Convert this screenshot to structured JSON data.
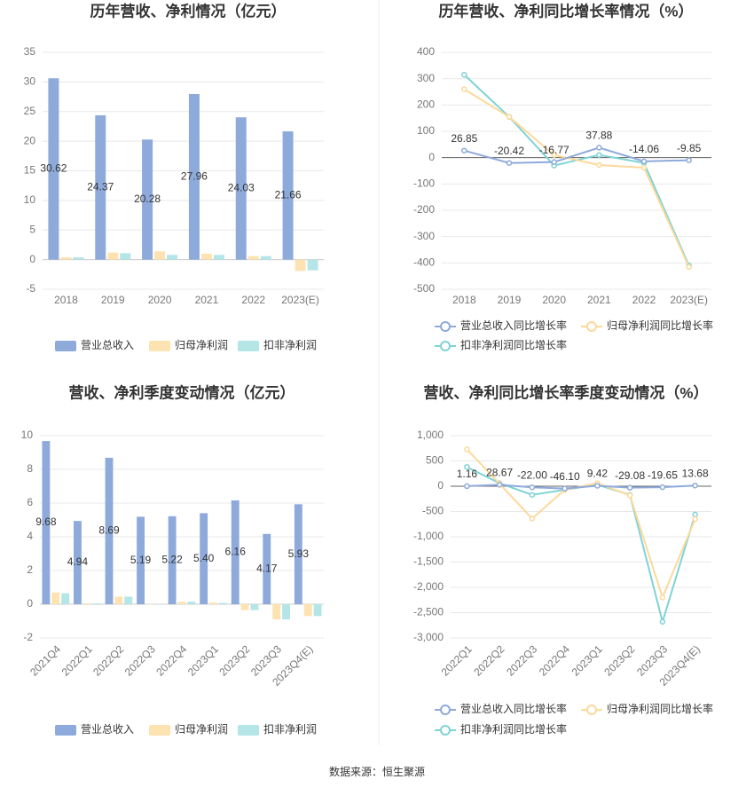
{
  "chart_data": [
    {
      "type": "bar",
      "title": "历年营收、净利情况（亿元）",
      "categories": [
        "2018",
        "2019",
        "2020",
        "2021",
        "2022",
        "2023(E)"
      ],
      "series": [
        {
          "name": "营业总收入",
          "color": "#8eaadb",
          "values": [
            30.62,
            24.37,
            20.28,
            27.96,
            24.03,
            21.66
          ],
          "value_labels": [
            "30.62",
            "24.37",
            "20.28",
            "27.96",
            "24.03",
            "21.66"
          ]
        },
        {
          "name": "归母净利润",
          "color": "#fde3b1",
          "values": [
            0.4,
            1.2,
            1.4,
            1.0,
            0.6,
            -1.9
          ]
        },
        {
          "name": "扣非净利润",
          "color": "#b4e5e7",
          "values": [
            0.4,
            1.1,
            0.8,
            0.8,
            0.6,
            -1.8
          ]
        }
      ],
      "ylim": [
        -5,
        35
      ],
      "yticks": [
        -5,
        0,
        5,
        10,
        15,
        20,
        25,
        30,
        35
      ],
      "grid": true
    },
    {
      "type": "line",
      "title": "历年营收、净利同比增长率情况（%）",
      "categories": [
        "2018",
        "2019",
        "2020",
        "2021",
        "2022",
        "2023(E)"
      ],
      "series": [
        {
          "name": "营业总收入同比增长率",
          "color": "#8eaadb",
          "values": [
            26.85,
            -20.42,
            -16.77,
            37.88,
            -14.06,
            -9.85
          ],
          "value_labels": [
            "26.85",
            "-20.42",
            "-16.77",
            "37.88",
            "-14.06",
            "-9.85"
          ]
        },
        {
          "name": "归母净利润同比增长率",
          "color": "#fcd99a",
          "values": [
            260,
            155,
            10,
            -28,
            -38,
            -415
          ]
        },
        {
          "name": "扣非净利润同比增长率",
          "color": "#7fd3d6",
          "values": [
            315,
            155,
            -30,
            10,
            -20,
            -410
          ]
        }
      ],
      "ylim": [
        -500,
        400
      ],
      "yticks": [
        -500,
        -400,
        -300,
        -200,
        -100,
        0,
        100,
        200,
        300,
        400
      ],
      "grid": true
    },
    {
      "type": "bar",
      "title": "营收、净利季度变动情况（亿元）",
      "categories": [
        "2021Q4",
        "2022Q1",
        "2022Q2",
        "2022Q3",
        "2022Q4",
        "2023Q1",
        "2023Q2",
        "2023Q3",
        "2023Q4(E)"
      ],
      "series": [
        {
          "name": "营业总收入",
          "color": "#8eaadb",
          "values": [
            9.68,
            4.94,
            8.69,
            5.19,
            5.22,
            5.4,
            6.16,
            4.17,
            5.93
          ],
          "value_labels": [
            "9.68",
            "4.94",
            "8.69",
            "5.19",
            "5.22",
            "5.40",
            "6.16",
            "4.17",
            "5.93"
          ]
        },
        {
          "name": "归母净利润",
          "color": "#fde3b1",
          "values": [
            0.7,
            0.05,
            0.45,
            -0.02,
            0.15,
            0.1,
            -0.35,
            -0.9,
            -0.7
          ]
        },
        {
          "name": "扣非净利润",
          "color": "#b4e5e7",
          "values": [
            0.65,
            0.05,
            0.45,
            -0.02,
            0.15,
            0.08,
            -0.35,
            -0.9,
            -0.7
          ]
        }
      ],
      "ylim": [
        -2,
        10
      ],
      "yticks": [
        -2,
        0,
        2,
        4,
        6,
        8,
        10
      ],
      "grid": true
    },
    {
      "type": "line",
      "title": "营收、净利同比增长率季度变动情况（%）",
      "categories": [
        "2022Q1",
        "2022Q2",
        "2022Q3",
        "2022Q4",
        "2023Q1",
        "2023Q2",
        "2023Q3",
        "2023Q4(E)"
      ],
      "series": [
        {
          "name": "营业总收入同比增长率",
          "color": "#8eaadb",
          "values": [
            1.16,
            28.67,
            -22.0,
            -46.1,
            9.42,
            -29.08,
            -19.65,
            13.68
          ],
          "value_labels": [
            "1.16",
            "28.67",
            "-22.00",
            "-46.10",
            "9.42",
            "-29.08",
            "-19.65",
            "13.68"
          ]
        },
        {
          "name": "归母净利润同比增长率",
          "color": "#fcd99a",
          "values": [
            730,
            50,
            -640,
            -70,
            60,
            -180,
            -2200,
            -650
          ]
        },
        {
          "name": "扣非净利润同比增长率",
          "color": "#7fd3d6",
          "values": [
            380,
            60,
            -170,
            -70,
            30,
            -170,
            -2680,
            -560
          ]
        }
      ],
      "ylim": [
        -3000,
        1000
      ],
      "yticks": [
        {
          "value": -3000,
          "label": "-3,000"
        },
        {
          "value": -2500,
          "label": "-2,500"
        },
        {
          "value": -2000,
          "label": "-2,000"
        },
        {
          "value": -1500,
          "label": "-1,500"
        },
        {
          "value": -1000,
          "label": "-1,000"
        },
        -500,
        0,
        500,
        {
          "value": 1000,
          "label": "1,000"
        }
      ],
      "grid": true
    }
  ],
  "source": "数据来源：恒生聚源"
}
